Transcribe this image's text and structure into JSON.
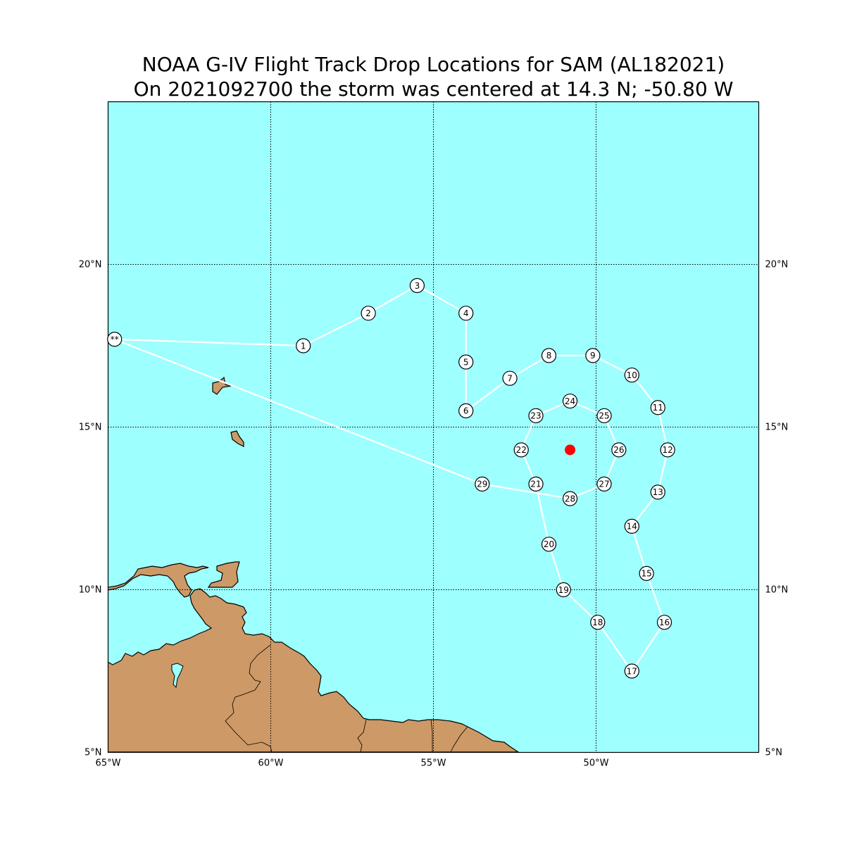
{
  "title": {
    "line1": "NOAA G-IV Flight Track Drop Locations for SAM (AL182021)",
    "line2": "On 2021092700 the storm was centered at 14.3 N; -50.80 W"
  },
  "colors": {
    "ocean": "#9effff",
    "land": "#cd9966",
    "track": "#ffffff",
    "storm_center": "#ff0000",
    "grid": "#000000"
  },
  "map": {
    "lon_range": [
      -65,
      -45
    ],
    "lat_range": [
      5,
      25
    ],
    "grid": "dotted",
    "lon_ticks": [
      {
        "value": -65,
        "label": "65°W"
      },
      {
        "value": -60,
        "label": "60°W"
      },
      {
        "value": -55,
        "label": "55°W"
      },
      {
        "value": -50,
        "label": "50°W"
      }
    ],
    "lat_ticks": [
      {
        "value": 5,
        "label": "5°N"
      },
      {
        "value": 10,
        "label": "10°N"
      },
      {
        "value": 15,
        "label": "15°N"
      },
      {
        "value": 20,
        "label": "20°N"
      }
    ]
  },
  "storm_center": {
    "lat": 14.3,
    "lon": -50.8
  },
  "base_marker": {
    "label": "**",
    "lat": 17.7,
    "lon": -64.8
  },
  "drops": [
    {
      "label": "1",
      "lat": 17.5,
      "lon": -59.0
    },
    {
      "label": "2",
      "lat": 18.5,
      "lon": -57.0
    },
    {
      "label": "3",
      "lat": 19.35,
      "lon": -55.5
    },
    {
      "label": "4",
      "lat": 18.5,
      "lon": -54.0
    },
    {
      "label": "5",
      "lat": 17.0,
      "lon": -54.0
    },
    {
      "label": "6",
      "lat": 15.5,
      "lon": -54.0
    },
    {
      "label": "7",
      "lat": 16.5,
      "lon": -52.65
    },
    {
      "label": "8",
      "lat": 17.2,
      "lon": -51.45
    },
    {
      "label": "9",
      "lat": 17.2,
      "lon": -50.1
    },
    {
      "label": "10",
      "lat": 16.6,
      "lon": -48.9
    },
    {
      "label": "11",
      "lat": 15.6,
      "lon": -48.1
    },
    {
      "label": "12",
      "lat": 14.3,
      "lon": -47.8
    },
    {
      "label": "13",
      "lat": 13.0,
      "lon": -48.1
    },
    {
      "label": "14",
      "lat": 11.95,
      "lon": -48.9
    },
    {
      "label": "15",
      "lat": 10.5,
      "lon": -48.45
    },
    {
      "label": "16",
      "lat": 9.0,
      "lon": -47.9
    },
    {
      "label": "17",
      "lat": 7.5,
      "lon": -48.9
    },
    {
      "label": "18",
      "lat": 9.0,
      "lon": -49.95
    },
    {
      "label": "19",
      "lat": 10.0,
      "lon": -51.0
    },
    {
      "label": "20",
      "lat": 11.4,
      "lon": -51.45
    },
    {
      "label": "21",
      "lat": 13.25,
      "lon": -51.85
    },
    {
      "label": "22",
      "lat": 14.3,
      "lon": -52.3
    },
    {
      "label": "23",
      "lat": 15.35,
      "lon": -51.85
    },
    {
      "label": "24",
      "lat": 15.8,
      "lon": -50.8
    },
    {
      "label": "25",
      "lat": 15.35,
      "lon": -49.75
    },
    {
      "label": "26",
      "lat": 14.3,
      "lon": -49.3
    },
    {
      "label": "27",
      "lat": 13.25,
      "lon": -49.75
    },
    {
      "label": "28",
      "lat": 12.8,
      "lon": -50.8
    },
    {
      "label": "29",
      "lat": 13.25,
      "lon": -53.5
    }
  ]
}
